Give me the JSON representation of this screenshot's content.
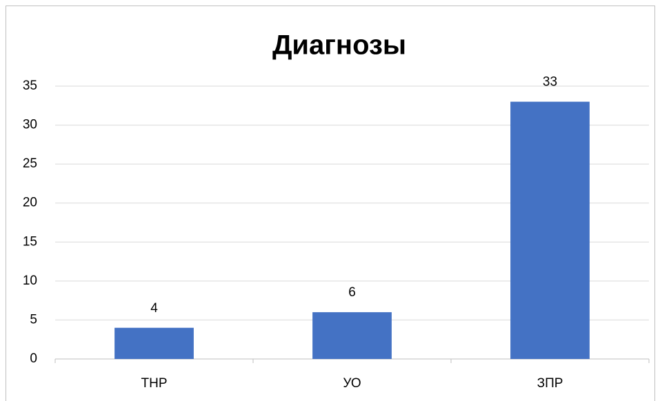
{
  "chart_data": {
    "type": "bar",
    "title": "Диагнозы",
    "categories": [
      "ТНР",
      "УО",
      "ЗПР"
    ],
    "values": [
      4,
      6,
      33
    ],
    "color": "#4472c4",
    "ylim": [
      0,
      35
    ],
    "yticks": [
      0,
      5,
      10,
      15,
      20,
      25,
      30,
      35
    ],
    "grid": true
  }
}
